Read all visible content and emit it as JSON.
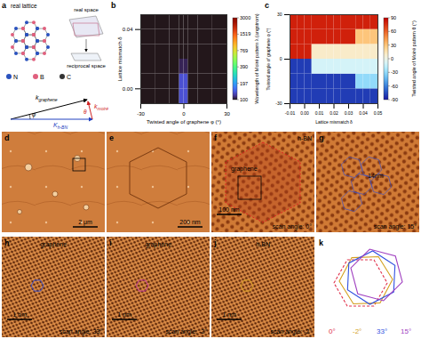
{
  "figure": {
    "a": {
      "panel": "a",
      "title": "real lattice",
      "real_space": "real space",
      "reciprocal_space": "reciprocal space",
      "atoms": [
        {
          "label": "N",
          "color": "#2a52be"
        },
        {
          "label": "B",
          "color": "#e0607e"
        },
        {
          "label": "C",
          "color": "#333333"
        }
      ],
      "vectors": [
        {
          "main": "k",
          "sub": "graphene"
        },
        {
          "main": "k",
          "sub": "moiré"
        },
        {
          "main": "K",
          "sub": "h-BN"
        }
      ],
      "angles": [
        "φ",
        "θ"
      ]
    },
    "images": [
      {
        "panel": "d",
        "scale_bar": "2 μm"
      },
      {
        "panel": "e",
        "scale_bar": "200 nm"
      },
      {
        "panel": "f",
        "texts": [
          "h-BN",
          "graphene"
        ],
        "scale_bar": "100 nm",
        "scan": "scan angle: 0°"
      },
      {
        "panel": "g",
        "texts": [
          "14nm"
        ],
        "scan": "scan angle: 15°"
      },
      {
        "panel": "h",
        "texts": [
          "graphene"
        ],
        "scan": "scan angle: 33°",
        "scale_bar": "1 nm"
      },
      {
        "panel": "i",
        "texts": [
          "graphene"
        ],
        "scan": "scan angle: -2°",
        "scale_bar": "1 nm"
      },
      {
        "panel": "j",
        "texts": [
          "h-BN"
        ],
        "scan": "scan angle: -2°",
        "scale_bar": "1 nm"
      }
    ],
    "k": {
      "panel": "k",
      "hexagons": [
        {
          "label": "0°",
          "angle": 0,
          "color": "#e0304a",
          "line_style": "dashed"
        },
        {
          "label": "-2°",
          "angle": -2,
          "color": "#d4a020",
          "line_style": "solid"
        },
        {
          "label": "33°",
          "angle": 33,
          "color": "#3050e0",
          "line_style": "solid"
        },
        {
          "label": "15°",
          "angle": 15,
          "color": "#a040c0",
          "line_style": "solid"
        }
      ]
    }
  },
  "chart_data": [
    {
      "type": "heatmap",
      "panel": "b",
      "x_label": "Twisted angle of graphene φ (°)",
      "y_label": "Lattice mismatch δ",
      "color_label": "Wavelength of Moiré pattern λ (angstrom)",
      "x": [
        -25,
        -15,
        -5,
        -1,
        1,
        5,
        15,
        25
      ],
      "y": [
        -0.005,
        0.005,
        0.015,
        0.025,
        0.035,
        0.045
      ],
      "cells": [
        [
          5.6,
          9.4,
          28,
          135,
          135,
          28,
          9.4,
          5.6
        ],
        [
          5.6,
          9.4,
          28,
          135,
          135,
          28,
          9.4,
          5.6
        ],
        [
          5.6,
          9.4,
          28,
          107,
          107,
          28,
          9.4,
          5.6
        ],
        [
          5.6,
          9.4,
          27,
          81,
          81,
          27,
          9.4,
          5.6
        ],
        [
          5.6,
          9.4,
          26,
          63,
          63,
          26,
          9.4,
          5.6
        ],
        [
          5.6,
          9.3,
          25,
          51,
          51,
          25,
          9.3,
          5.6
        ]
      ],
      "xlim": [
        -30,
        30
      ],
      "xticks": [
        -30,
        0,
        30
      ],
      "ylim": [
        -0.01,
        0.05
      ],
      "yticks": [
        {
          "value": 0,
          "label": "0.00"
        },
        {
          "value": 0.04,
          "label": "0.04"
        }
      ],
      "log": true,
      "color_range": [
        100,
        3000
      ],
      "color_ticks": [
        3000,
        1519,
        769,
        390,
        197,
        100
      ]
    },
    {
      "type": "heatmap",
      "panel": "c",
      "x_label": "Lattice mismatch δ",
      "y_label": "Twisted angle of graphene φ (°)",
      "color_label": "Twisted angle of Moiré pattern θ (°)",
      "x": [
        -0.0075,
        -0.0025,
        0.0025,
        0.0075,
        0.0125,
        0.0175,
        0.0225,
        0.0275,
        0.0325,
        0.0375,
        0.0425,
        0.0475
      ],
      "y": [
        -25,
        -15,
        -5,
        5,
        15,
        25
      ],
      "cells": [
        [
          -80,
          -80,
          -80,
          -80,
          -80,
          -80,
          -80,
          -80,
          -80,
          -80,
          -80,
          -80
        ],
        [
          -80,
          -80,
          -80,
          -80,
          -80,
          -80,
          -80,
          -80,
          -80,
          -30,
          -30,
          -30
        ],
        [
          -80,
          -80,
          -80,
          -10,
          -10,
          -10,
          -10,
          -10,
          -10,
          -10,
          -10,
          -10
        ],
        [
          80,
          80,
          80,
          10,
          10,
          10,
          10,
          10,
          10,
          10,
          10,
          10
        ],
        [
          80,
          80,
          80,
          80,
          80,
          80,
          80,
          80,
          80,
          30,
          30,
          30
        ],
        [
          80,
          80,
          80,
          80,
          80,
          80,
          80,
          80,
          80,
          80,
          80,
          80
        ]
      ],
      "xlim": [
        -0.01,
        0.05
      ],
      "xticks": [
        {
          "value": -0.01,
          "label": "-0.01"
        },
        {
          "value": 0,
          "label": "0.00"
        },
        {
          "value": 0.01,
          "label": "0.01"
        },
        {
          "value": 0.02,
          "label": "0.02"
        },
        {
          "value": 0.03,
          "label": "0.03"
        },
        {
          "value": 0.04,
          "label": "0.04"
        },
        {
          "value": 0.05,
          "label": "0.05"
        }
      ],
      "ylim": [
        -30,
        30
      ],
      "yticks": [
        -30,
        0,
        30
      ],
      "color_range": [
        -90,
        90
      ],
      "color_ticks": [
        90,
        60,
        30,
        0,
        -30,
        -60,
        -90
      ]
    }
  ]
}
